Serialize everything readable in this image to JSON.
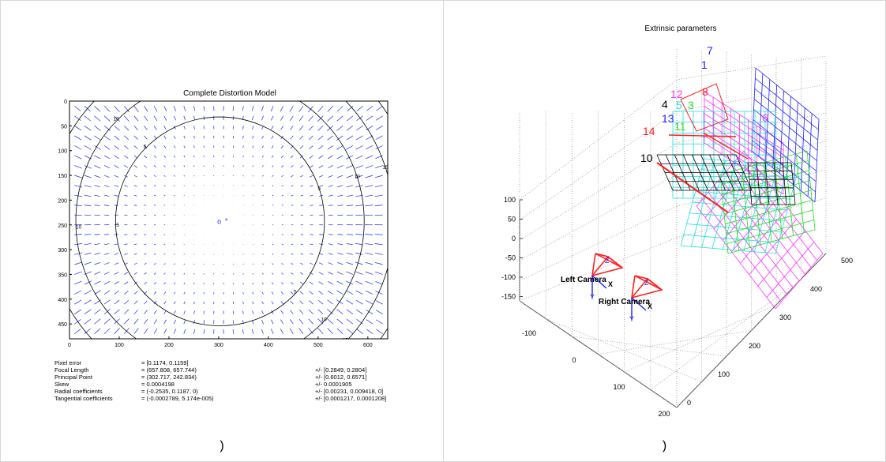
{
  "captions": {
    "left": ")",
    "right": ")"
  },
  "left_chart": {
    "title": "Complete Distortion Model",
    "center_marker": "o",
    "center_cross": "×",
    "parameters": [
      {
        "label": "Pixel error",
        "value": "= [0.1174, 0.1159]",
        "error": ""
      },
      {
        "label": "Focal Length",
        "value": "= (657.808, 657.744)",
        "error": "+/- [0.2849, 0.2804]"
      },
      {
        "label": "Principal Point",
        "value": "= (302.717, 242.834)",
        "error": "+/- [0.6012, 0.6571]"
      },
      {
        "label": "Skew",
        "value": "= 0.0004198",
        "error": "+/- 0.0001905"
      },
      {
        "label": "Radial coefficients",
        "value": "= (-0.2535, 0.1187, 0)",
        "error": "+/- [0.00231, 0.009418, 0]"
      },
      {
        "label": "Tangential coefficients",
        "value": "= (-0.0002789, 5.174e-005)",
        "error": "+/- [0.0001217, 0.0001208]"
      }
    ]
  },
  "right_chart": {
    "title": "Extrinsic parameters",
    "left_camera": "Left Camera",
    "right_camera": "Right Camera",
    "axis_x": "X",
    "axis_y": "Y",
    "axis_z": "Z",
    "colors": {
      "red": "#ff2020",
      "blue": "#2020ff",
      "magenta": "#ff33ff",
      "green": "#22dd22",
      "cyan": "#22dddd",
      "black": "#000000"
    }
  },
  "chart_data": [
    {
      "type": "contour",
      "title": "Complete Distortion Model",
      "xlim": [
        0,
        640
      ],
      "ylim": [
        0,
        480
      ],
      "y_reversed": true,
      "x_ticks": [
        0,
        100,
        200,
        300,
        400,
        500,
        600
      ],
      "y_ticks": [
        0,
        50,
        100,
        150,
        200,
        250,
        300,
        350,
        400,
        450
      ],
      "principal_point": [
        302.717,
        242.834
      ],
      "contour_labels": [
        "5",
        "10",
        "15",
        "20",
        "25"
      ]
    },
    {
      "type": "3d-scatter",
      "title": "Extrinsic parameters",
      "z_ticks": [
        100,
        50,
        0,
        -50,
        -100,
        -150
      ],
      "x_ticks": [
        -100,
        0,
        100,
        200
      ],
      "y_ticks": [
        0,
        100,
        200,
        300,
        400,
        500
      ],
      "plane_labels": [
        {
          "label": "7",
          "color": "blue"
        },
        {
          "label": "1",
          "color": "blue"
        },
        {
          "label": "12",
          "color": "magenta"
        },
        {
          "label": "8",
          "color": "red"
        },
        {
          "label": "4",
          "color": "black"
        },
        {
          "label": "5",
          "color": "cyan"
        },
        {
          "label": "3",
          "color": "green"
        },
        {
          "label": "13",
          "color": "blue"
        },
        {
          "label": "6",
          "color": "magenta"
        },
        {
          "label": "11",
          "color": "green"
        },
        {
          "label": "14",
          "color": "red"
        },
        {
          "label": "10",
          "color": "black"
        }
      ]
    }
  ]
}
